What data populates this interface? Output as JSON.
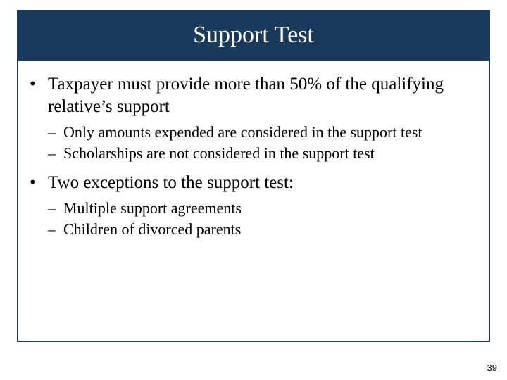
{
  "slide": {
    "title": "Support Test",
    "title_bg_color": "#1a3a5c",
    "title_text_color": "#ffffff",
    "title_fontsize": 34,
    "border_color": "#1a3a5c",
    "body_text_color": "#000000",
    "bullets": [
      {
        "level": 1,
        "marker": "•",
        "text": "Taxpayer must provide more than 50% of the qualifying relative’s support",
        "fontsize": 25
      },
      {
        "level": 2,
        "marker": "–",
        "text": "Only amounts expended are considered in the support test",
        "fontsize": 22
      },
      {
        "level": 2,
        "marker": "–",
        "text": "Scholarships are not considered in the support test",
        "fontsize": 22
      },
      {
        "level": 1,
        "marker": "•",
        "text": "Two exceptions to the support test:",
        "fontsize": 25
      },
      {
        "level": 2,
        "marker": "–",
        "text": "Multiple support agreements",
        "fontsize": 22
      },
      {
        "level": 2,
        "marker": "–",
        "text": "Children of divorced parents",
        "fontsize": 22
      }
    ],
    "page_number": "39"
  }
}
